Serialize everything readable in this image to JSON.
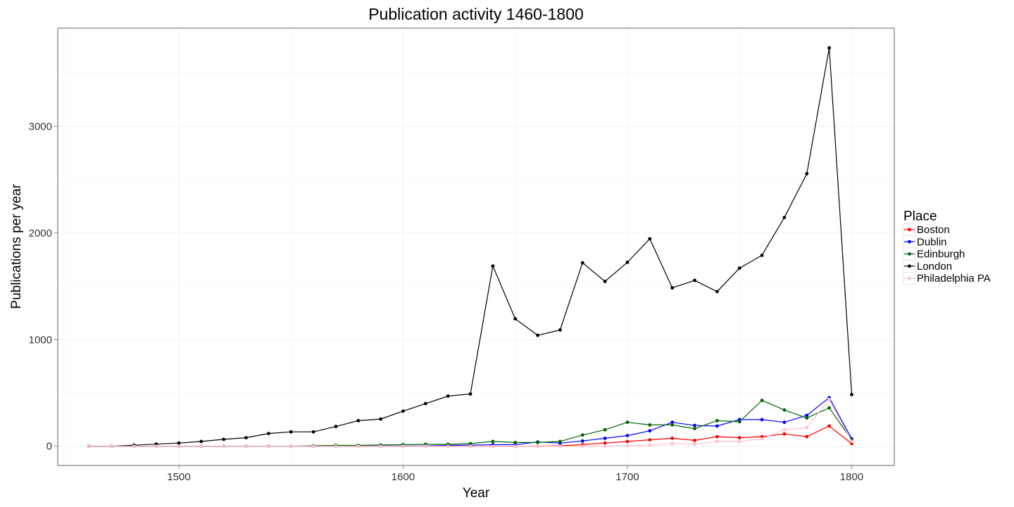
{
  "chart_data": {
    "type": "line",
    "title": "Publication activity 1460-1800",
    "xlabel": "Year",
    "ylabel": "Publications per year",
    "xlim": [
      1446,
      1819
    ],
    "ylim": [
      -180,
      3920
    ],
    "x_ticks": [
      1500,
      1600,
      1700,
      1800
    ],
    "y_ticks": [
      0,
      1000,
      2000,
      3000
    ],
    "grid": true,
    "legend_title": "Place",
    "legend_position": "right",
    "x": [
      1460,
      1470,
      1480,
      1490,
      1500,
      1510,
      1520,
      1530,
      1540,
      1550,
      1560,
      1570,
      1580,
      1590,
      1600,
      1610,
      1620,
      1630,
      1640,
      1650,
      1660,
      1670,
      1680,
      1690,
      1700,
      1710,
      1720,
      1730,
      1740,
      1750,
      1760,
      1770,
      1780,
      1790,
      1800
    ],
    "series": [
      {
        "name": "Boston",
        "color": "#ff0000",
        "values": [
          0,
          0,
          0,
          0,
          0,
          0,
          0,
          0,
          0,
          0,
          0,
          0,
          0,
          0,
          0,
          0,
          0,
          0,
          0,
          0,
          0,
          5,
          15,
          30,
          45,
          60,
          75,
          55,
          90,
          80,
          90,
          115,
          90,
          190,
          25
        ]
      },
      {
        "name": "Dublin",
        "color": "#0000ff",
        "values": [
          0,
          0,
          0,
          0,
          0,
          0,
          0,
          0,
          0,
          0,
          0,
          2,
          2,
          2,
          3,
          3,
          8,
          10,
          15,
          15,
          40,
          30,
          50,
          75,
          100,
          145,
          225,
          195,
          190,
          250,
          250,
          225,
          290,
          455,
          70
        ]
      },
      {
        "name": "Edinburgh",
        "color": "#006400",
        "values": [
          0,
          0,
          0,
          0,
          0,
          0,
          0,
          0,
          0,
          0,
          5,
          8,
          8,
          12,
          15,
          18,
          18,
          25,
          45,
          35,
          35,
          45,
          105,
          155,
          225,
          200,
          200,
          165,
          240,
          230,
          430,
          340,
          265,
          360,
          60
        ]
      },
      {
        "name": "London",
        "color": "#000000",
        "values": [
          0,
          0,
          10,
          20,
          30,
          45,
          65,
          80,
          120,
          135,
          135,
          185,
          240,
          255,
          330,
          400,
          470,
          490,
          1690,
          1195,
          1040,
          1090,
          1720,
          1545,
          1725,
          1945,
          1485,
          1555,
          1450,
          1670,
          1790,
          2145,
          2555,
          3735,
          485
        ]
      },
      {
        "name": "Philadelphia PA",
        "color": "#ffc0cb",
        "values": [
          0,
          0,
          0,
          0,
          0,
          0,
          0,
          0,
          0,
          0,
          0,
          0,
          0,
          0,
          0,
          0,
          0,
          0,
          0,
          0,
          0,
          0,
          0,
          0,
          5,
          10,
          25,
          20,
          45,
          45,
          70,
          155,
          175,
          440,
          45
        ]
      }
    ]
  }
}
